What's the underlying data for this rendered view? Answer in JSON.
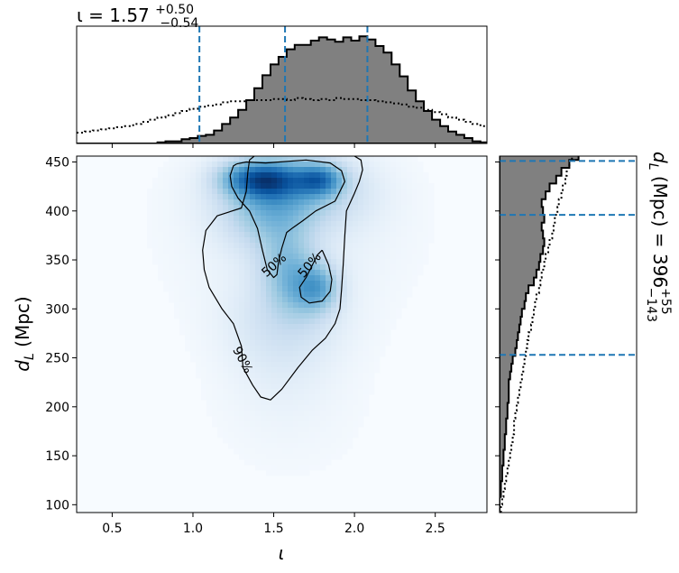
{
  "chart_data": {
    "type": "corner",
    "parameters": [
      "iota",
      "d_L"
    ],
    "xlabel": "ι",
    "ylabel_main": "d",
    "ylabel_sub": "L",
    "ylabel_unit": " (Mpc)",
    "xlim": [
      0.28,
      2.82
    ],
    "ylim": [
      92,
      456
    ],
    "x_ticks": [
      0.5,
      1.0,
      1.5,
      2.0,
      2.5
    ],
    "x_tick_labels": [
      "0.5",
      "1.0",
      "1.5",
      "2.0",
      "2.5"
    ],
    "y_ticks": [
      100,
      150,
      200,
      250,
      300,
      350,
      400,
      450
    ],
    "y_tick_labels": [
      "100",
      "150",
      "200",
      "250",
      "300",
      "350",
      "400",
      "450"
    ],
    "top_title": {
      "param": "ι = 1.57",
      "sup": "+0.50",
      "sub": "−0.54"
    },
    "right_title": {
      "param_main": "d",
      "param_sub": "L",
      "unit": " (Mpc) = 396",
      "sup": "+55",
      "sub": "−143"
    },
    "iota_quantiles": [
      1.04,
      1.57,
      2.08
    ],
    "dl_quantiles": [
      253,
      396,
      451
    ],
    "iota_hist": {
      "bin_start": 0.28,
      "bin_width": 0.05,
      "posterior": [
        0,
        0,
        0,
        0,
        0,
        0,
        0,
        0,
        0,
        0,
        0.01,
        0.02,
        0.02,
        0.04,
        0.05,
        0.07,
        0.08,
        0.12,
        0.18,
        0.24,
        0.31,
        0.4,
        0.51,
        0.63,
        0.73,
        0.8,
        0.87,
        0.91,
        0.91,
        0.95,
        0.98,
        0.96,
        0.94,
        0.98,
        0.95,
        0.99,
        0.96,
        0.9,
        0.84,
        0.73,
        0.62,
        0.49,
        0.39,
        0.3,
        0.22,
        0.16,
        0.11,
        0.08,
        0.05,
        0.02,
        0.01,
        0
      ],
      "prior": [
        0.1,
        0.11,
        0.12,
        0.13,
        0.14,
        0.15,
        0.16,
        0.18,
        0.2,
        0.22,
        0.24,
        0.26,
        0.28,
        0.3,
        0.32,
        0.34,
        0.35,
        0.36,
        0.38,
        0.39,
        0.39,
        0.4,
        0.4,
        0.4,
        0.41,
        0.41,
        0.4,
        0.42,
        0.41,
        0.4,
        0.41,
        0.4,
        0.42,
        0.41,
        0.41,
        0.4,
        0.4,
        0.39,
        0.38,
        0.37,
        0.36,
        0.34,
        0.33,
        0.31,
        0.29,
        0.27,
        0.24,
        0.22,
        0.2,
        0.18,
        0.16,
        0.14
      ]
    },
    "dl_hist": {
      "bin_start": 92,
      "bin_width": 8,
      "posterior": [
        0,
        0,
        0.01,
        0.01,
        0.02,
        0.02,
        0.03,
        0.03,
        0.04,
        0.04,
        0.05,
        0.05,
        0.06,
        0.06,
        0.07,
        0.07,
        0.07,
        0.08,
        0.09,
        0.1,
        0.12,
        0.13,
        0.14,
        0.15,
        0.16,
        0.17,
        0.19,
        0.2,
        0.22,
        0.26,
        0.28,
        0.3,
        0.31,
        0.33,
        0.34,
        0.33,
        0.32,
        0.34,
        0.33,
        0.32,
        0.35,
        0.38,
        0.43,
        0.47,
        0.53,
        0.6,
        0.67,
        0.78,
        0.93,
        1.0
      ],
      "prior": [
        0.01,
        0.02,
        0.03,
        0.04,
        0.05,
        0.06,
        0.07,
        0.08,
        0.09,
        0.1,
        0.11,
        0.11,
        0.12,
        0.13,
        0.14,
        0.15,
        0.16,
        0.17,
        0.18,
        0.19,
        0.2,
        0.21,
        0.22,
        0.24,
        0.25,
        0.26,
        0.27,
        0.28,
        0.3,
        0.31,
        0.32,
        0.34,
        0.35,
        0.37,
        0.38,
        0.4,
        0.41,
        0.42,
        0.44,
        0.45,
        0.47,
        0.48,
        0.5,
        0.51,
        0.53,
        0.55,
        0.56,
        0.58,
        0.59,
        0.6
      ]
    },
    "density_blobs": [
      {
        "x": 1.48,
        "y": 432,
        "sx": 0.13,
        "sy": 13,
        "w": 1.0
      },
      {
        "x": 1.78,
        "y": 432,
        "sx": 0.1,
        "sy": 11,
        "w": 0.95
      },
      {
        "x": 1.3,
        "y": 433,
        "sx": 0.12,
        "sy": 12,
        "w": 0.55
      },
      {
        "x": 1.62,
        "y": 420,
        "sx": 0.28,
        "sy": 25,
        "w": 0.55
      },
      {
        "x": 1.45,
        "y": 395,
        "sx": 0.18,
        "sy": 25,
        "w": 0.35
      },
      {
        "x": 1.58,
        "y": 345,
        "sx": 0.12,
        "sy": 28,
        "w": 0.45
      },
      {
        "x": 1.78,
        "y": 322,
        "sx": 0.09,
        "sy": 16,
        "w": 0.55
      },
      {
        "x": 1.68,
        "y": 320,
        "sx": 0.12,
        "sy": 22,
        "w": 0.3
      },
      {
        "x": 1.58,
        "y": 290,
        "sx": 0.25,
        "sy": 30,
        "w": 0.18
      },
      {
        "x": 1.55,
        "y": 255,
        "sx": 0.22,
        "sy": 40,
        "w": 0.1
      },
      {
        "x": 1.6,
        "y": 200,
        "sx": 0.35,
        "sy": 55,
        "w": 0.04
      },
      {
        "x": 1.6,
        "y": 380,
        "sx": 0.45,
        "sy": 60,
        "w": 0.12
      }
    ],
    "contours": [
      {
        "label": "90%",
        "label_at": [
          1.31,
          248
        ],
        "label_rot": 62,
        "points": [
          [
            1.38,
            456
          ],
          [
            1.35,
            452
          ],
          [
            1.34,
            440
          ],
          [
            1.33,
            420
          ],
          [
            1.3,
            403
          ],
          [
            1.15,
            395
          ],
          [
            1.08,
            380
          ],
          [
            1.06,
            360
          ],
          [
            1.07,
            340
          ],
          [
            1.1,
            322
          ],
          [
            1.18,
            300
          ],
          [
            1.25,
            285
          ],
          [
            1.3,
            262
          ],
          [
            1.31,
            240
          ],
          [
            1.37,
            222
          ],
          [
            1.42,
            210
          ],
          [
            1.48,
            207
          ],
          [
            1.55,
            218
          ],
          [
            1.65,
            240
          ],
          [
            1.74,
            258
          ],
          [
            1.82,
            270
          ],
          [
            1.88,
            285
          ],
          [
            1.91,
            300
          ],
          [
            1.92,
            320
          ],
          [
            1.93,
            345
          ],
          [
            1.94,
            375
          ],
          [
            1.95,
            400
          ],
          [
            2.0,
            418
          ],
          [
            2.03,
            430
          ],
          [
            2.05,
            442
          ],
          [
            2.04,
            452
          ],
          [
            2.0,
            456
          ]
        ]
      },
      {
        "label": "50%",
        "label_at": [
          1.5,
          345
        ],
        "label_rot": -42,
        "points": [
          [
            1.27,
            448
          ],
          [
            1.33,
            450
          ],
          [
            1.45,
            449
          ],
          [
            1.7,
            452
          ],
          [
            1.85,
            449
          ],
          [
            1.92,
            441
          ],
          [
            1.94,
            430
          ],
          [
            1.88,
            410
          ],
          [
            1.76,
            400
          ],
          [
            1.68,
            390
          ],
          [
            1.62,
            383
          ],
          [
            1.58,
            378
          ],
          [
            1.55,
            362
          ],
          [
            1.53,
            348
          ],
          [
            1.52,
            335
          ],
          [
            1.5,
            332
          ],
          [
            1.46,
            340
          ],
          [
            1.43,
            360
          ],
          [
            1.4,
            382
          ],
          [
            1.35,
            400
          ],
          [
            1.28,
            413
          ],
          [
            1.24,
            425
          ],
          [
            1.23,
            436
          ],
          [
            1.25,
            446
          ],
          [
            1.27,
            448
          ]
        ]
      },
      {
        "label": "50%",
        "label_at": [
          1.72,
          345
        ],
        "label_rot": -50,
        "points": [
          [
            1.8,
            360
          ],
          [
            1.84,
            345
          ],
          [
            1.86,
            330
          ],
          [
            1.85,
            318
          ],
          [
            1.8,
            308
          ],
          [
            1.72,
            306
          ],
          [
            1.67,
            312
          ],
          [
            1.66,
            322
          ],
          [
            1.7,
            332
          ],
          [
            1.74,
            345
          ],
          [
            1.77,
            355
          ],
          [
            1.8,
            360
          ]
        ]
      }
    ]
  }
}
